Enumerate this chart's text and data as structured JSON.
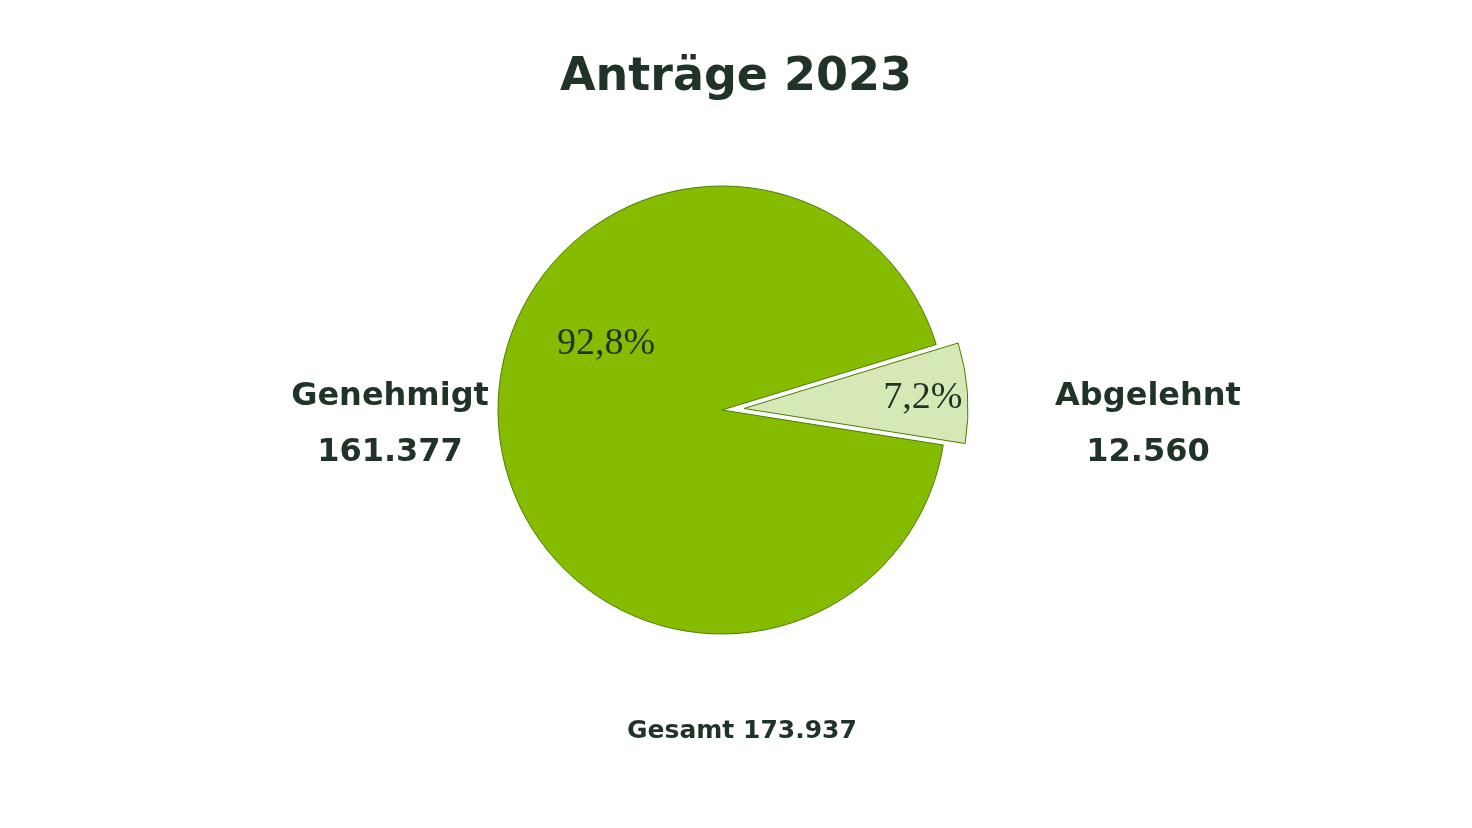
{
  "chart_data": {
    "type": "pie",
    "title": "Anträge 2023",
    "categories": [
      "Genehmigt",
      "Abgelehnt"
    ],
    "values": [
      161377,
      12560
    ],
    "colors": [
      "#86bc00",
      "#d5e8b5"
    ],
    "value_labels": [
      "161.377",
      "12.560"
    ],
    "annotations": [
      {
        "text": "92,8%",
        "x": "Genehmigt"
      },
      {
        "text": "7,2%",
        "x": "Abgelehnt"
      },
      "Gesamt 173.937"
    ]
  }
}
